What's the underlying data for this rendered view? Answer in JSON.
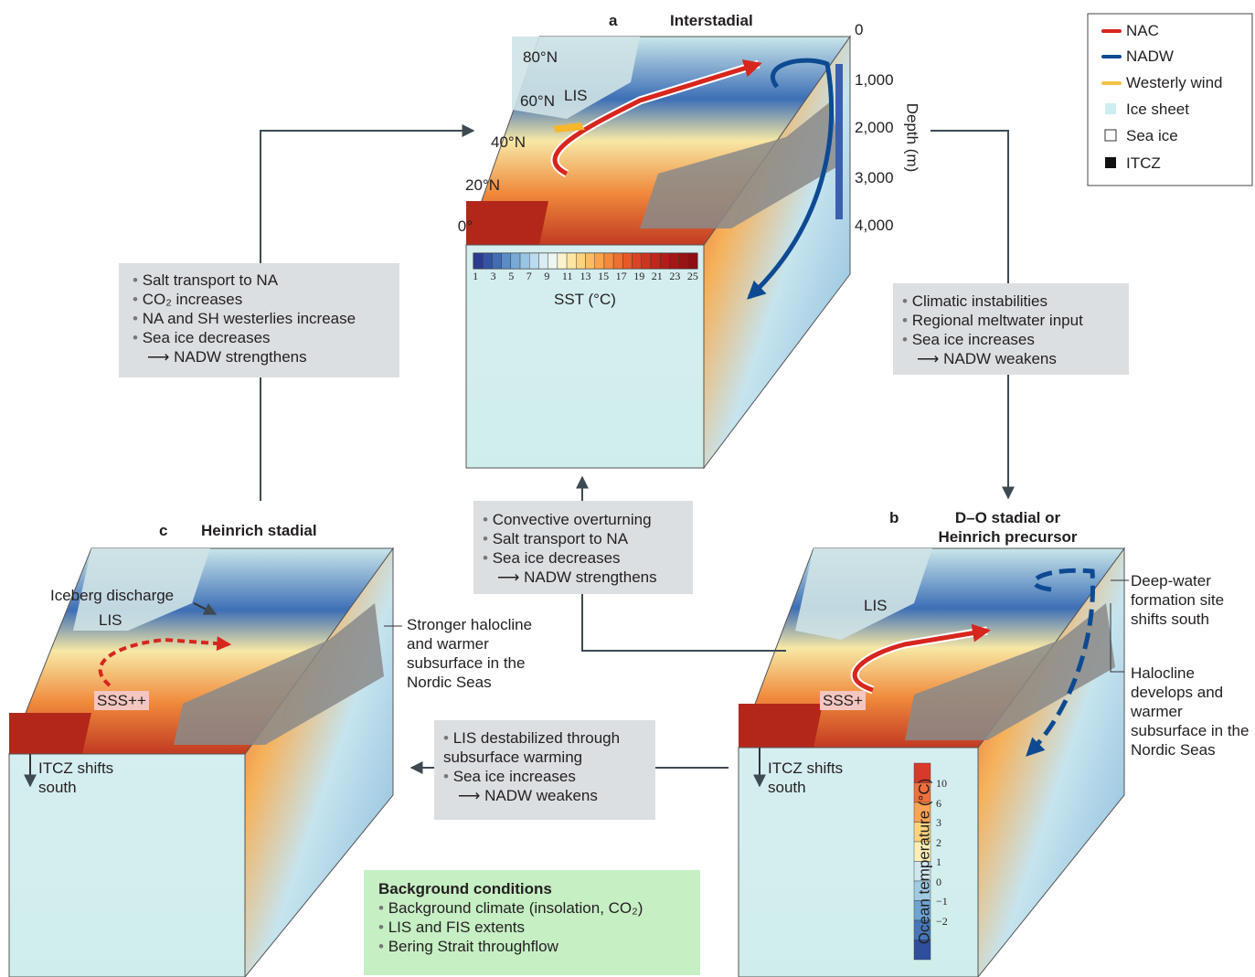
{
  "legend": [
    "NAC",
    "NADW",
    "Westerly wind",
    "Ice sheet",
    "Sea ice",
    "ITCZ"
  ],
  "panel_a": {
    "letter": "a",
    "title": "Interstadial",
    "lis": "LIS",
    "latitudes": [
      "80°N",
      "60°N",
      "40°N",
      "20°N",
      "0°"
    ],
    "depth_ticks": [
      "0",
      "1,000",
      "2,000",
      "3,000",
      "4,000"
    ],
    "depth_label": "Depth (m)",
    "sst_ticks": [
      "1",
      "3",
      "5",
      "7",
      "9",
      "11",
      "13",
      "15",
      "17",
      "19",
      "21",
      "23",
      "25"
    ],
    "sst_label": "SST (°C)"
  },
  "panel_b": {
    "letter": "b",
    "title": "D–O stadial or Heinrich precursor",
    "lis": "LIS",
    "sss": "SSS+",
    "deep_water": "Deep-water formation site shifts south",
    "halocline": "Halocline develops and warmer subsurface in the Nordic Seas",
    "itcz": "ITCZ shifts south",
    "temp_ticks": [
      "10",
      "6",
      "3",
      "2",
      "1",
      "0",
      "−1",
      "−2"
    ],
    "temp_label": "Ocean temperature (°C)"
  },
  "panel_c": {
    "letter": "c",
    "title": "Heinrich stadial",
    "iceberg": "Iceberg discharge",
    "lis": "LIS",
    "sss": "SSS++",
    "halocline": "Stronger halocline and warmer subsurface in the Nordic Seas",
    "itcz": "ITCZ shifts south"
  },
  "box_c_to_a": {
    "items": [
      "Salt transport to NA",
      "CO₂ increases",
      "NA and SH westerlies increase",
      "Sea ice decreases"
    ],
    "result": "NADW strengthens"
  },
  "box_a_to_b": {
    "items": [
      "Climatic instabilities",
      "Regional meltwater input",
      "Sea ice increases"
    ],
    "result": "NADW weakens"
  },
  "box_b_to_a": {
    "items": [
      "Convective overturning",
      "Salt transport to NA",
      "Sea ice decreases"
    ],
    "result": "NADW strengthens"
  },
  "box_b_to_c": {
    "items": [
      "LIS destabilized through subsurface warming",
      "Sea ice increases"
    ],
    "result": "NADW weakens"
  },
  "background": {
    "title": "Background conditions",
    "items": [
      "Background climate (insolation, CO₂)",
      "LIS and FIS extents",
      "Bering Strait throughflow"
    ]
  }
}
